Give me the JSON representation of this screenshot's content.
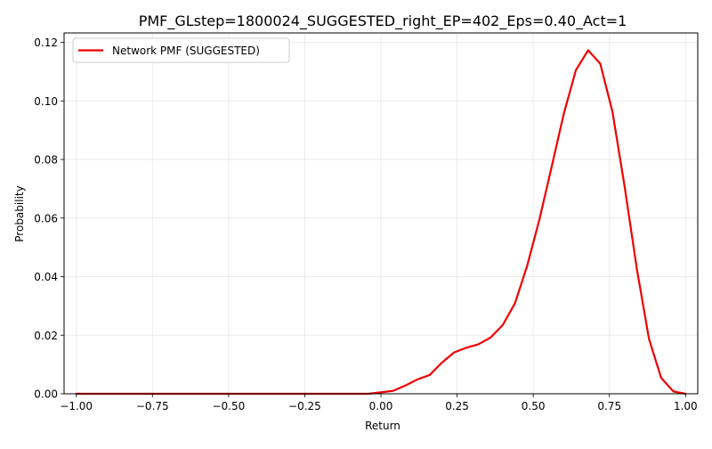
{
  "chart_data": {
    "type": "line",
    "title": "PMF_GLstep=1800024_SUGGESTED_right_EP=402_Eps=0.40_Act=1",
    "xlabel": "Return",
    "ylabel": "Probability",
    "xlim": [
      -1.04,
      1.04
    ],
    "ylim": [
      0,
      0.1232
    ],
    "x_ticks": [
      -1.0,
      -0.75,
      -0.5,
      -0.25,
      0.0,
      0.25,
      0.5,
      0.75,
      1.0
    ],
    "x_tick_labels": [
      "−1.00",
      "−0.75",
      "−0.50",
      "−0.25",
      "0.00",
      "0.25",
      "0.50",
      "0.75",
      "1.00"
    ],
    "y_ticks": [
      0.0,
      0.02,
      0.04,
      0.06,
      0.08,
      0.1,
      0.12
    ],
    "y_tick_labels": [
      "0.00",
      "0.02",
      "0.04",
      "0.06",
      "0.08",
      "0.10",
      "0.12"
    ],
    "grid": true,
    "legend_position": "upper-left",
    "series": [
      {
        "name": "Network PMF (SUGGESTED)",
        "color": "#ee0000",
        "x": [
          -1.0,
          -0.96,
          -0.92,
          -0.88,
          -0.84,
          -0.8,
          -0.76,
          -0.72,
          -0.68,
          -0.64,
          -0.6,
          -0.56,
          -0.52,
          -0.48,
          -0.44,
          -0.4,
          -0.36,
          -0.32,
          -0.28,
          -0.24,
          -0.2,
          -0.16,
          -0.12,
          -0.08,
          -0.04,
          0.0,
          0.04,
          0.08,
          0.12,
          0.16,
          0.2,
          0.24,
          0.28,
          0.32,
          0.36,
          0.4,
          0.44,
          0.48,
          0.52,
          0.56,
          0.6,
          0.64,
          0.68,
          0.72,
          0.76,
          0.8,
          0.84,
          0.88,
          0.92,
          0.96,
          1.0
        ],
        "values": [
          0,
          0,
          0,
          0,
          0,
          0,
          0,
          0,
          0,
          0,
          0,
          0,
          0,
          0,
          0,
          0,
          0,
          0,
          0,
          0,
          0,
          0,
          0,
          0,
          0,
          0.0005,
          0.001,
          0.0028,
          0.0049,
          0.0064,
          0.0106,
          0.0141,
          0.0157,
          0.0169,
          0.0192,
          0.0235,
          0.0309,
          0.0437,
          0.0594,
          0.0773,
          0.0955,
          0.1105,
          0.1173,
          0.1127,
          0.0963,
          0.0707,
          0.0427,
          0.0187,
          0.0054,
          0.0008,
          0.0
        ]
      }
    ]
  }
}
